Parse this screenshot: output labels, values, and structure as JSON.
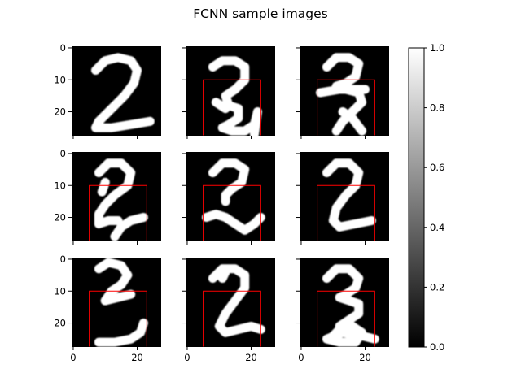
{
  "figure": {
    "title": "FCNN sample images"
  },
  "chart_data": {
    "type": "heatmap",
    "title": "FCNN sample images",
    "colormap": "gray",
    "grid": false,
    "image_size": [
      28,
      28
    ],
    "layout": {
      "rows": 3,
      "cols": 3,
      "sharex": true,
      "sharey": true
    },
    "xlim": [
      -0.5,
      27.5
    ],
    "ylim": [
      27.5,
      -0.5
    ],
    "x_ticks": [
      0,
      20
    ],
    "y_ticks": [
      0,
      10,
      20
    ],
    "colorbar": {
      "range": [
        0.0,
        1.0
      ],
      "ticks": [
        "0.0",
        "0.2",
        "0.4",
        "0.6",
        "0.8",
        "1.0"
      ],
      "tick_values": [
        0.0,
        0.2,
        0.4,
        0.6,
        0.8,
        1.0
      ],
      "placement": "right"
    },
    "overlay_color": "#ff0000",
    "panels": [
      {
        "row": 0,
        "col": 0,
        "digit": "2",
        "box": null,
        "strokes": [
          [
            [
              7,
              7
            ],
            [
              10,
              4
            ],
            [
              14,
              3
            ],
            [
              18,
              4
            ],
            [
              20,
              7
            ],
            [
              19,
              11
            ],
            [
              16,
              15
            ],
            [
              12,
              19
            ],
            [
              8,
              23
            ],
            [
              7,
              25
            ],
            [
              12,
              25
            ],
            [
              18,
              24
            ],
            [
              24,
              23
            ]
          ]
        ]
      },
      {
        "row": 0,
        "col": 1,
        "digit": "2",
        "box": {
          "x": [
            5,
            23
          ],
          "y": [
            10,
            27.5
          ]
        },
        "strokes": [
          [
            [
              8,
              6
            ],
            [
              11,
              4
            ],
            [
              15,
              4
            ],
            [
              18,
              6
            ],
            [
              18,
              10
            ],
            [
              15,
              13
            ],
            [
              12,
              15
            ],
            [
              13,
              18
            ],
            [
              16,
              19
            ],
            [
              16,
              22
            ],
            [
              13,
              24
            ],
            [
              11,
              25
            ],
            [
              14,
              26
            ],
            [
              18,
              26
            ],
            [
              21,
              24
            ],
            [
              22,
              20
            ],
            [
              21,
              27
            ]
          ],
          [
            [
              9,
              17
            ],
            [
              12,
              19
            ]
          ]
        ]
      },
      {
        "row": 0,
        "col": 2,
        "digit": "2",
        "box": {
          "x": [
            5,
            23
          ],
          "y": [
            10,
            27.5
          ]
        },
        "strokes": [
          [
            [
              8,
              6
            ],
            [
              11,
              3
            ],
            [
              15,
              3
            ],
            [
              18,
              5
            ],
            [
              17,
              9
            ],
            [
              14,
              11
            ],
            [
              11,
              12
            ],
            [
              14,
              13
            ],
            [
              18,
              14
            ],
            [
              19,
              17
            ],
            [
              16,
              20
            ],
            [
              13,
              23
            ],
            [
              11,
              26
            ]
          ],
          [
            [
              6,
              14
            ],
            [
              12,
              13
            ],
            [
              20,
              13
            ]
          ],
          [
            [
              13,
              20
            ],
            [
              16,
              22
            ],
            [
              19,
              26
            ]
          ]
        ]
      },
      {
        "row": 1,
        "col": 0,
        "digit": "2",
        "box": {
          "x": [
            5,
            23
          ],
          "y": [
            10,
            27.5
          ]
        },
        "strokes": [
          [
            [
              8,
              6
            ],
            [
              11,
              3
            ],
            [
              15,
              3
            ],
            [
              18,
              6
            ],
            [
              17,
              10
            ],
            [
              13,
              13
            ],
            [
              10,
              16
            ],
            [
              8,
              19
            ],
            [
              8,
              22
            ]
          ],
          [
            [
              10,
              9
            ],
            [
              9,
              12
            ]
          ],
          [
            [
              8,
              22
            ],
            [
              11,
              21
            ],
            [
              14,
              21
            ]
          ],
          [
            [
              13,
              26
            ],
            [
              15,
              23
            ],
            [
              18,
              21
            ],
            [
              22,
              20
            ]
          ]
        ]
      },
      {
        "row": 1,
        "col": 1,
        "digit": "2",
        "box": {
          "x": [
            5,
            23
          ],
          "y": [
            10,
            27.5
          ]
        },
        "strokes": [
          [
            [
              8,
              6
            ],
            [
              11,
              3
            ],
            [
              15,
              3
            ],
            [
              18,
              5
            ],
            [
              17,
              9
            ],
            [
              14,
              11
            ],
            [
              12,
              13
            ],
            [
              12,
              15
            ]
          ],
          [
            [
              6,
              20
            ],
            [
              9,
              19
            ],
            [
              12,
              20
            ],
            [
              15,
              22
            ],
            [
              18,
              24
            ],
            [
              21,
              22
            ],
            [
              23,
              20
            ]
          ]
        ]
      },
      {
        "row": 1,
        "col": 2,
        "digit": "2",
        "box": {
          "x": [
            5,
            23
          ],
          "y": [
            10,
            27.5
          ]
        },
        "strokes": [
          [
            [
              8,
              6
            ],
            [
              11,
              3
            ],
            [
              15,
              3
            ],
            [
              18,
              6
            ],
            [
              17,
              10
            ],
            [
              14,
              13
            ],
            [
              11,
              17
            ],
            [
              10,
              21
            ],
            [
              12,
              23
            ],
            [
              17,
              22
            ],
            [
              22,
              21
            ]
          ]
        ]
      },
      {
        "row": 2,
        "col": 0,
        "digit": "2",
        "box": {
          "x": [
            5,
            23
          ],
          "y": [
            10,
            27.5
          ]
        },
        "strokes": [
          [
            [
              8,
              3
            ],
            [
              11,
              1
            ],
            [
              15,
              2
            ],
            [
              17,
              5
            ],
            [
              15,
              8
            ],
            [
              12,
              10
            ],
            [
              10,
              13
            ]
          ],
          [
            [
              10,
              13
            ],
            [
              14,
              12
            ],
            [
              18,
              11
            ]
          ],
          [
            [
              8,
              26
            ],
            [
              13,
              26
            ],
            [
              18,
              25
            ],
            [
              21,
              23
            ],
            [
              22,
              20
            ]
          ]
        ]
      },
      {
        "row": 2,
        "col": 1,
        "digit": "2",
        "box": {
          "x": [
            5,
            23
          ],
          "y": [
            10,
            27.5
          ]
        },
        "strokes": [
          [
            [
              8,
              6
            ],
            [
              11,
              3
            ],
            [
              15,
              3
            ],
            [
              18,
              5
            ],
            [
              18,
              9
            ],
            [
              15,
              13
            ],
            [
              12,
              17
            ],
            [
              10,
              21
            ],
            [
              12,
              23
            ],
            [
              16,
              22
            ],
            [
              20,
              21
            ],
            [
              23,
              22
            ]
          ],
          [
            [
              11,
              6
            ],
            [
              12,
              4
            ]
          ]
        ]
      },
      {
        "row": 2,
        "col": 2,
        "digit": "2",
        "box": {
          "x": [
            5,
            23
          ],
          "y": [
            10,
            27.5
          ]
        },
        "strokes": [
          [
            [
              8,
              6
            ],
            [
              11,
              3
            ],
            [
              15,
              3
            ],
            [
              18,
              6
            ],
            [
              17,
              9
            ],
            [
              14,
              11
            ],
            [
              12,
              12
            ],
            [
              15,
              13
            ],
            [
              18,
              14
            ],
            [
              18,
              17
            ],
            [
              15,
              19
            ],
            [
              12,
              21
            ]
          ],
          [
            [
              9,
              25
            ],
            [
              12,
              22
            ],
            [
              16,
              21
            ],
            [
              19,
              23
            ],
            [
              17,
              26
            ],
            [
              12,
              26
            ],
            [
              8,
              25
            ],
            [
              13,
              23
            ],
            [
              19,
              24
            ],
            [
              23,
              25
            ]
          ]
        ]
      }
    ]
  }
}
